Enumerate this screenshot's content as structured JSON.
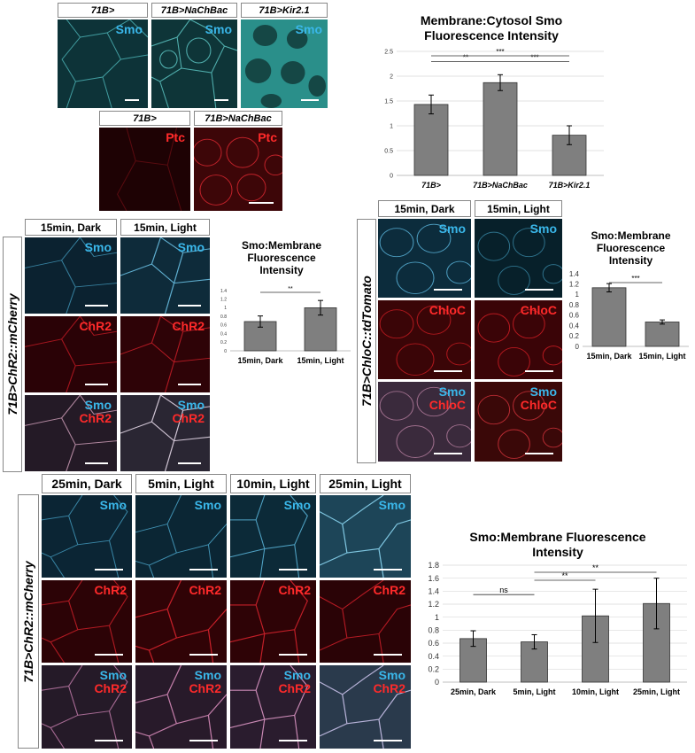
{
  "panelA": {
    "headers": [
      "71B>",
      "71B>NaChBac",
      "71B>Kir2.1"
    ],
    "smo_label": "Smo",
    "ptc_headers": [
      "71B>",
      "71B>NaChBac"
    ],
    "ptc_label": "Ptc"
  },
  "panelB": {
    "headers": [
      "15min, Dark",
      "15min, Light"
    ],
    "side_label": "71B>ChR2::mCherry",
    "row_labels": {
      "smo": "Smo",
      "chr2": "ChR2"
    }
  },
  "panelC": {
    "headers": [
      "15min, Dark",
      "15min, Light"
    ],
    "side_label": "71B>ChloC::tdTomato",
    "row_labels": {
      "smo": "Smo",
      "chloc": "ChloC"
    }
  },
  "panelD": {
    "headers": [
      "25min, Dark",
      "5min, Light",
      "10min, Light",
      "25min, Light"
    ],
    "side_label": "71B>ChR2::mCherry",
    "row_labels": {
      "smo": "Smo",
      "chr2": "ChR2"
    }
  },
  "colors": {
    "cyan": "#3ab7ea",
    "red": "#ff2a2a",
    "bar": "#7f7f7f"
  },
  "chart_data": [
    {
      "id": "chart1",
      "type": "bar",
      "title_lines": [
        "Membrane:Cytosol Smo",
        "Fluorescence Intensity"
      ],
      "categories": [
        "71B>",
        "71B>NaChBac",
        "71B>Kir2.1"
      ],
      "values": [
        1.43,
        1.87,
        0.81
      ],
      "errors": [
        0.19,
        0.16,
        0.19
      ],
      "ylim": [
        0,
        2.5
      ],
      "yticks": [
        "0",
        "0.5",
        "1",
        "1.5",
        "2",
        "2.5"
      ],
      "grid": true,
      "italic_categories": true,
      "significance": [
        {
          "from": 0,
          "to": 1,
          "label": "**",
          "level": 0.92
        },
        {
          "from": 1,
          "to": 2,
          "label": "***",
          "level": 0.92
        },
        {
          "from": 0,
          "to": 2,
          "label": "***",
          "level": 1.0
        }
      ]
    },
    {
      "id": "chart2",
      "type": "bar",
      "title_lines": [
        "Smo:Membrane",
        "Fluorescence",
        "Intensity"
      ],
      "categories": [
        "15min, Dark",
        "15min, Light"
      ],
      "values": [
        0.68,
        1.0
      ],
      "errors": [
        0.13,
        0.17
      ],
      "ylim": [
        0,
        1.4
      ],
      "yticks": [
        "0",
        "0.2",
        "0.4",
        "0.6",
        "0.8",
        "1",
        "1.2",
        "1.4"
      ],
      "grid": false,
      "italic_categories": false,
      "significance": [
        {
          "from": 0,
          "to": 1,
          "label": "**",
          "level": 1.0
        }
      ]
    },
    {
      "id": "chart3",
      "type": "bar",
      "title_lines": [
        "Smo:Membrane",
        "Fluorescence",
        "Intensity"
      ],
      "categories": [
        "15min, Dark",
        "15min, Light"
      ],
      "values": [
        1.13,
        0.47
      ],
      "errors": [
        0.08,
        0.04
      ],
      "ylim": [
        0,
        1.4
      ],
      "yticks": [
        "0",
        "0.2",
        "0.4",
        "0.6",
        "0.8",
        "1",
        "1.2",
        "1.4"
      ],
      "grid": false,
      "italic_categories": false,
      "significance": [
        {
          "from": 0,
          "to": 1,
          "label": "***",
          "level": 1.0
        }
      ]
    },
    {
      "id": "chart4",
      "type": "bar",
      "title_lines": [
        "Smo:Membrane Fluorescence",
        "Intensity"
      ],
      "categories": [
        "25min, Dark",
        "5min, Light",
        "10min, Light",
        "25min, Light"
      ],
      "values": [
        0.67,
        0.62,
        1.02,
        1.21
      ],
      "errors": [
        0.12,
        0.11,
        0.41,
        0.39
      ],
      "ylim": [
        0,
        1.8
      ],
      "yticks": [
        "0",
        "0.2",
        "0.4",
        "0.6",
        "0.8",
        "1",
        "1.2",
        "1.4",
        "1.6",
        "1.8"
      ],
      "grid": true,
      "italic_categories": false,
      "significance": [
        {
          "from": 0,
          "to": 1,
          "label": "ns",
          "level": 0.72
        },
        {
          "from": 1,
          "to": 2,
          "label": "**",
          "level": 0.9
        },
        {
          "from": 1,
          "to": 3,
          "label": "**",
          "level": 1.0
        }
      ]
    }
  ]
}
